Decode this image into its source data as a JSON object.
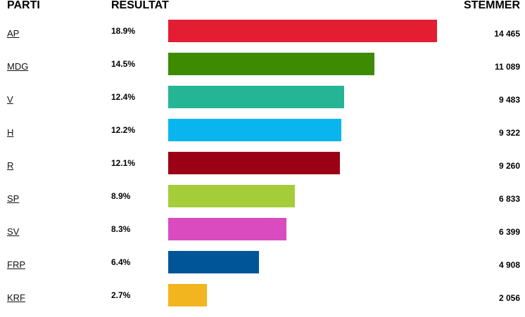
{
  "header": {
    "party": "PARTI",
    "result": "RESULTAT",
    "votes": "STEMMER"
  },
  "chart_data": {
    "type": "bar",
    "orientation": "horizontal",
    "grid": false,
    "categories": [
      "AP",
      "MDG",
      "V",
      "H",
      "R",
      "SP",
      "SV",
      "FRP",
      "KRF"
    ],
    "values": [
      18.9,
      14.5,
      12.4,
      12.2,
      12.1,
      8.9,
      8.3,
      6.4,
      2.7
    ],
    "percent_labels": [
      "18.9%",
      "14.5%",
      "12.4%",
      "12.2%",
      "12.1%",
      "8.9%",
      "8.3%",
      "6.4%",
      "2.7%"
    ],
    "votes": [
      14465,
      11089,
      9483,
      9322,
      9260,
      6833,
      6399,
      4908,
      2056
    ],
    "vote_labels": [
      "14 465",
      "11 089",
      "9 483",
      "9 322",
      "9 260",
      "6 833",
      "6 399",
      "4 908",
      "2 056"
    ],
    "colors": [
      "#e41e32",
      "#3d8a03",
      "#26b594",
      "#08b5ef",
      "#9b0014",
      "#a5cd39",
      "#d94bbe",
      "#005598",
      "#f2b41f"
    ]
  }
}
